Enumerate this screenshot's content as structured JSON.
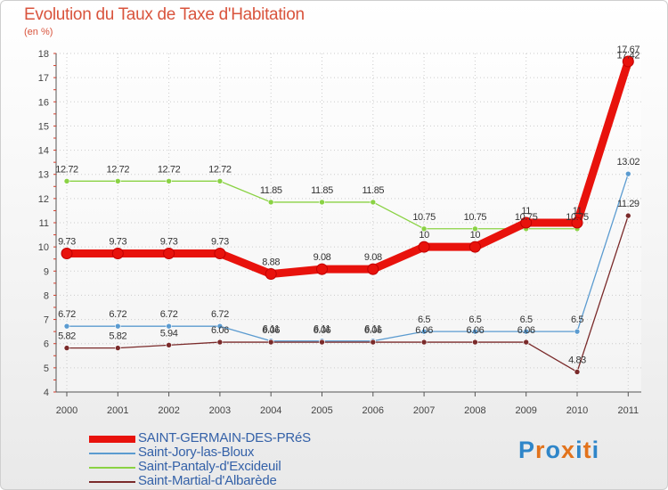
{
  "title": "Evolution du Taux de Taxe d'Habitation",
  "unit": "(en %)",
  "logo": {
    "text": "Proxiti",
    "colors": [
      "#2f86c9",
      "#e2731c",
      "#2f86c9",
      "#e2731c",
      "#2f86c9",
      "#e2731c",
      "#2f86c9"
    ]
  },
  "chart_data": {
    "type": "line",
    "title": "Evolution du Taux de Taxe d'Habitation",
    "ylabel": "(en %)",
    "xlabel": "",
    "x": [
      "2000",
      "2001",
      "2002",
      "2003",
      "2004",
      "2005",
      "2006",
      "2007",
      "2008",
      "2009",
      "2010",
      "2011"
    ],
    "ylim": [
      4,
      18
    ],
    "yticks": [
      "4",
      "5",
      "6",
      "7",
      "8",
      "9",
      "10",
      "11",
      "12",
      "13",
      "14",
      "15",
      "16",
      "17",
      "18"
    ],
    "grid": true,
    "series": [
      {
        "name": "SAINT-GERMAIN-DES-PRéS",
        "color": "#e8120c",
        "values": [
          9.73,
          9.73,
          9.73,
          9.73,
          8.88,
          9.08,
          9.08,
          10,
          10,
          11,
          11,
          17.67
        ],
        "labels": [
          "9.73",
          "9.73",
          "9.73",
          "9.73",
          "8.88",
          "9.08",
          "9.08",
          "10",
          "10",
          "11",
          "11",
          "17.67"
        ]
      },
      {
        "name": "Saint-Jory-las-Bloux",
        "color": "#5b9bd0",
        "values": [
          6.72,
          6.72,
          6.72,
          6.72,
          6.11,
          6.11,
          6.11,
          6.5,
          6.5,
          6.5,
          6.5,
          13.02
        ],
        "labels": [
          "6.72",
          "6.72",
          "6.72",
          "6.72",
          "6.11",
          "6.11",
          "6.11",
          "6.5",
          "6.5",
          "6.5",
          "6.5",
          "13.02"
        ]
      },
      {
        "name": "Saint-Pantaly-d'Excideuil",
        "color": "#8ad244",
        "values": [
          12.72,
          12.72,
          12.72,
          12.72,
          11.85,
          11.85,
          11.85,
          10.75,
          10.75,
          10.75,
          10.75,
          17.42
        ],
        "labels": [
          "12.72",
          "12.72",
          "12.72",
          "12.72",
          "11.85",
          "11.85",
          "11.85",
          "10.75",
          "10.75",
          "10.75",
          "10.75",
          "17.42"
        ]
      },
      {
        "name": "Saint-Martial-d'Albarède",
        "color": "#7a2a2a",
        "values": [
          5.82,
          5.82,
          5.94,
          6.06,
          6.06,
          6.06,
          6.06,
          6.06,
          6.06,
          6.06,
          4.83,
          11.29
        ],
        "labels": [
          "5.82",
          "5.82",
          "5.94",
          "6.06",
          "6.06",
          "6.06",
          "6.06",
          "6.06",
          "6.06",
          "6.06",
          "4.83",
          "11.29"
        ]
      }
    ],
    "legend_position": "bottom-left"
  }
}
